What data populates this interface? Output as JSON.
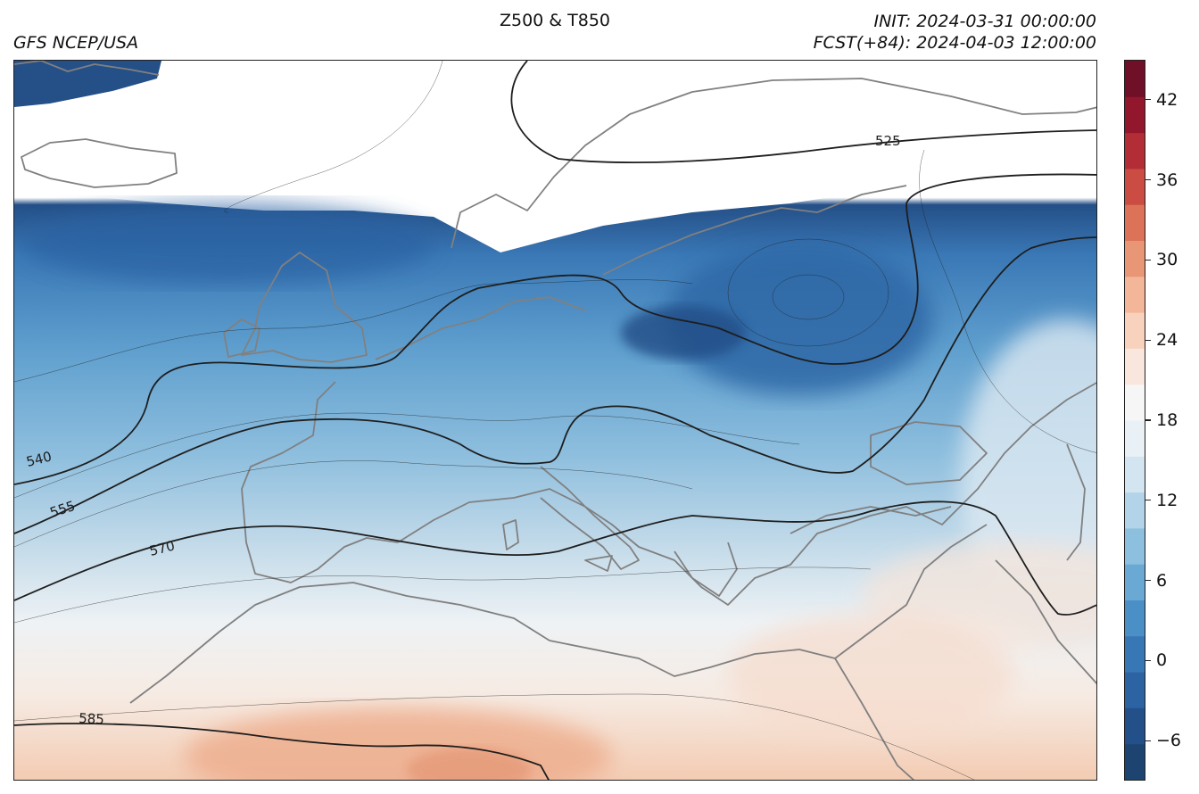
{
  "header": {
    "title": "Z500 & T850",
    "source": "GFS NCEP/USA",
    "init": "INIT: 2024-03-31 00:00:00",
    "forecast": "FCST(+84): 2024-04-03 12:00:00"
  },
  "map": {
    "region": "Europe, North Atlantic, North Africa",
    "contour_labels": [
      "525",
      "540",
      "555",
      "570",
      "585"
    ],
    "colors": {
      "coast": "#808080",
      "contour": "#1e1e1e"
    }
  },
  "colorbar": {
    "ticks": [
      "42",
      "36",
      "30",
      "24",
      "18",
      "12",
      "6",
      "0",
      "−6"
    ],
    "min": -9,
    "max": 45,
    "palette": [
      "#1d4371",
      "#24508a",
      "#2c63a3",
      "#3877b6",
      "#4a8fc6",
      "#6aa9d4",
      "#8dc0df",
      "#b3d4e8",
      "#d2e5f0",
      "#e9f1f6",
      "#f6f6f6",
      "#f9e7dd",
      "#f8d2bd",
      "#f3b698",
      "#e89676",
      "#dc7257",
      "#ca4c43",
      "#b22d35",
      "#92162c",
      "#701028"
    ]
  }
}
